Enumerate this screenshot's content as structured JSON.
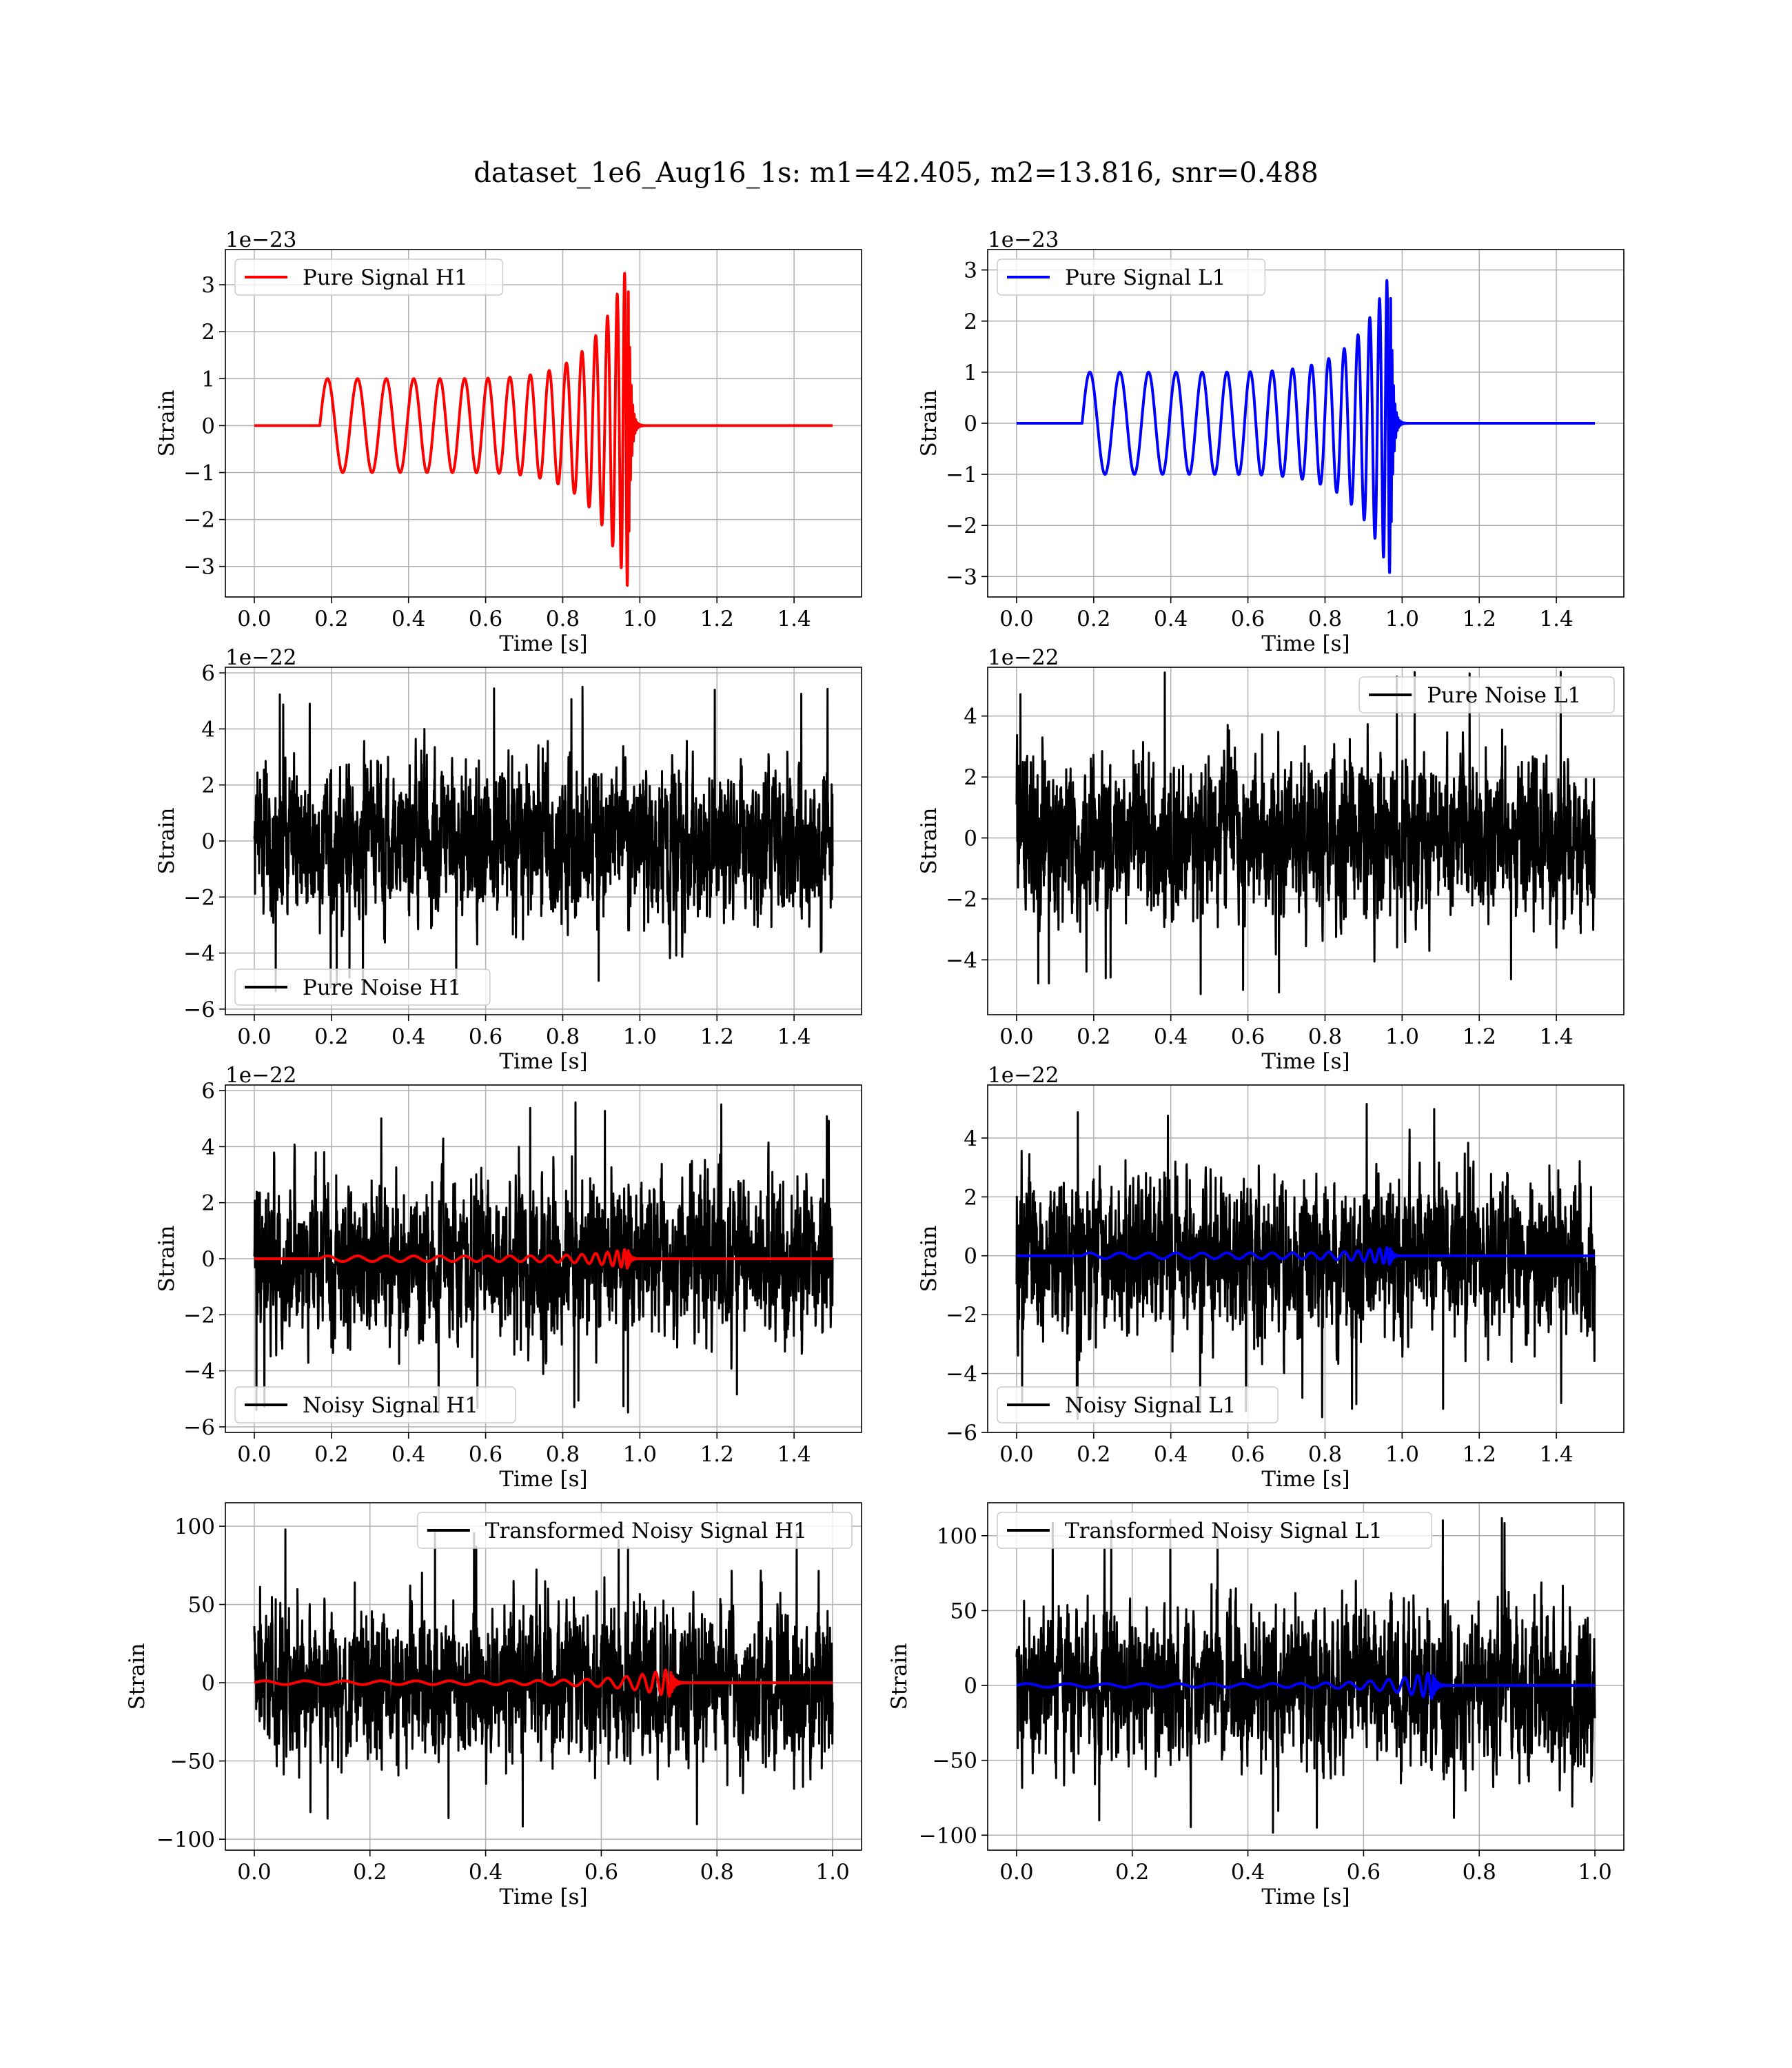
{
  "title": "dataset_1e6_Aug16_1s: m1=42.405, m2=13.816, snr=0.488",
  "colors": {
    "h1_signal": "#ff0000",
    "l1_signal": "#0000ff",
    "noise": "#000000",
    "grid": "#b0b0b0"
  },
  "chart_data": [
    {
      "id": "pure-signal-h1",
      "type": "line",
      "kind": "chirp",
      "detector": "H1",
      "xlabel": "Time [s]",
      "ylabel": "Strain",
      "offset_text": "1e−23",
      "xlim": [
        -0.075,
        1.575
      ],
      "ylim": [
        -3.65,
        3.75
      ],
      "xticks": [
        0.0,
        0.2,
        0.4,
        0.6,
        0.8,
        1.0,
        1.2,
        1.4
      ],
      "xticklabels": [
        "0.0",
        "0.2",
        "0.4",
        "0.6",
        "0.8",
        "1.0",
        "1.2",
        "1.4"
      ],
      "yticks": [
        -3,
        -2,
        -1,
        0,
        1,
        2,
        3
      ],
      "yticklabels": [
        "−3",
        "−2",
        "−1",
        "0",
        "1",
        "2",
        "3"
      ],
      "legend": "top-left",
      "series": [
        {
          "name": "Pure Signal H1",
          "color": "#ff0000",
          "t_start": 0.17,
          "t_merger": 0.97,
          "t_end": 1.5,
          "amp_start": 1.0,
          "amp_peak": 3.5,
          "amp_trough": -3.4
        }
      ]
    },
    {
      "id": "pure-signal-l1",
      "type": "line",
      "kind": "chirp",
      "detector": "L1",
      "xlabel": "Time [s]",
      "ylabel": "Strain",
      "offset_text": "1e−23",
      "xlim": [
        -0.075,
        1.575
      ],
      "ylim": [
        -3.4,
        3.4
      ],
      "xticks": [
        0.0,
        0.2,
        0.4,
        0.6,
        0.8,
        1.0,
        1.2,
        1.4
      ],
      "xticklabels": [
        "0.0",
        "0.2",
        "0.4",
        "0.6",
        "0.8",
        "1.0",
        "1.2",
        "1.4"
      ],
      "yticks": [
        -3,
        -2,
        -1,
        0,
        1,
        2,
        3
      ],
      "yticklabels": [
        "−3",
        "−2",
        "−1",
        "0",
        "1",
        "2",
        "3"
      ],
      "legend": "top-left",
      "series": [
        {
          "name": "Pure Signal L1",
          "color": "#0000ff",
          "t_start": 0.17,
          "t_merger": 0.97,
          "t_end": 1.5,
          "amp_start": 1.0,
          "amp_peak": 3.0,
          "amp_trough": -3.1
        }
      ]
    },
    {
      "id": "pure-noise-h1",
      "type": "line",
      "kind": "noise",
      "detector": "H1",
      "xlabel": "Time [s]",
      "ylabel": "Strain",
      "offset_text": "1e−22",
      "xlim": [
        -0.075,
        1.575
      ],
      "ylim": [
        -6.2,
        6.2
      ],
      "xticks": [
        0.0,
        0.2,
        0.4,
        0.6,
        0.8,
        1.0,
        1.2,
        1.4
      ],
      "xticklabels": [
        "0.0",
        "0.2",
        "0.4",
        "0.6",
        "0.8",
        "1.0",
        "1.2",
        "1.4"
      ],
      "yticks": [
        -6,
        -4,
        -2,
        0,
        2,
        4,
        6
      ],
      "yticklabels": [
        "−6",
        "−4",
        "−2",
        "0",
        "2",
        "4",
        "6"
      ],
      "legend": "bottom-left",
      "series": [
        {
          "name": "Pure Noise H1",
          "color": "#000000",
          "t_start": 0.0,
          "t_end": 1.5,
          "min": -5.6,
          "max": 5.7
        }
      ]
    },
    {
      "id": "pure-noise-l1",
      "type": "line",
      "kind": "noise",
      "detector": "L1",
      "xlabel": "Time [s]",
      "ylabel": "Strain",
      "offset_text": "1e−22",
      "xlim": [
        -0.075,
        1.575
      ],
      "ylim": [
        -5.8,
        5.6
      ],
      "xticks": [
        0.0,
        0.2,
        0.4,
        0.6,
        0.8,
        1.0,
        1.2,
        1.4
      ],
      "xticklabels": [
        "0.0",
        "0.2",
        "0.4",
        "0.6",
        "0.8",
        "1.0",
        "1.2",
        "1.4"
      ],
      "yticks": [
        -4,
        -2,
        0,
        2,
        4
      ],
      "yticklabels": [
        "−4",
        "−2",
        "0",
        "2",
        "4"
      ],
      "legend": "top-right",
      "series": [
        {
          "name": "Pure Noise L1",
          "color": "#000000",
          "t_start": 0.0,
          "t_end": 1.5,
          "min": -5.2,
          "max": 5.5
        }
      ]
    },
    {
      "id": "noisy-signal-h1",
      "type": "line",
      "kind": "noise_with_signal",
      "detector": "H1",
      "xlabel": "Time [s]",
      "ylabel": "Strain",
      "offset_text": "1e−22",
      "xlim": [
        -0.075,
        1.575
      ],
      "ylim": [
        -6.2,
        6.2
      ],
      "xticks": [
        0.0,
        0.2,
        0.4,
        0.6,
        0.8,
        1.0,
        1.2,
        1.4
      ],
      "xticklabels": [
        "0.0",
        "0.2",
        "0.4",
        "0.6",
        "0.8",
        "1.0",
        "1.2",
        "1.4"
      ],
      "yticks": [
        -6,
        -4,
        -2,
        0,
        2,
        4,
        6
      ],
      "yticklabels": [
        "−6",
        "−4",
        "−2",
        "0",
        "2",
        "4",
        "6"
      ],
      "legend": "bottom-left",
      "series": [
        {
          "name": "Noisy Signal H1",
          "color": "#000000",
          "t_start": 0.0,
          "t_end": 1.5,
          "min": -5.6,
          "max": 5.7
        },
        {
          "color": "#ff0000",
          "t_start": 0.17,
          "t_merger": 0.97,
          "t_end": 1.5,
          "amp_start": 0.1,
          "amp_peak": 0.35,
          "amp_trough": -0.34
        }
      ]
    },
    {
      "id": "noisy-signal-l1",
      "type": "line",
      "kind": "noise_with_signal",
      "detector": "L1",
      "xlabel": "Time [s]",
      "ylabel": "Strain",
      "offset_text": "1e−22",
      "xlim": [
        -0.075,
        1.575
      ],
      "ylim": [
        -6.0,
        5.8
      ],
      "xticks": [
        0.0,
        0.2,
        0.4,
        0.6,
        0.8,
        1.0,
        1.2,
        1.4
      ],
      "xticklabels": [
        "0.0",
        "0.2",
        "0.4",
        "0.6",
        "0.8",
        "1.0",
        "1.2",
        "1.4"
      ],
      "yticks": [
        -6,
        -4,
        -2,
        0,
        2,
        4
      ],
      "yticklabels": [
        "−6",
        "−4",
        "−2",
        "0",
        "2",
        "4"
      ],
      "legend": "bottom-left",
      "series": [
        {
          "name": "Noisy Signal L1",
          "color": "#000000",
          "t_start": 0.0,
          "t_end": 1.5,
          "min": -5.6,
          "max": 5.3
        },
        {
          "color": "#0000ff",
          "t_start": 0.17,
          "t_merger": 0.97,
          "t_end": 1.5,
          "amp_start": 0.1,
          "amp_peak": 0.3,
          "amp_trough": -0.31
        }
      ]
    },
    {
      "id": "transformed-noisy-signal-h1",
      "type": "line",
      "kind": "noise_with_signal",
      "detector": "H1",
      "xlabel": "Time [s]",
      "ylabel": "Strain",
      "offset_text": "",
      "xlim": [
        -0.05,
        1.05
      ],
      "ylim": [
        -107,
        115
      ],
      "xticks": [
        0.0,
        0.2,
        0.4,
        0.6,
        0.8,
        1.0
      ],
      "xticklabels": [
        "0.0",
        "0.2",
        "0.4",
        "0.6",
        "0.8",
        "1.0"
      ],
      "yticks": [
        -100,
        -50,
        0,
        50,
        100
      ],
      "yticklabels": [
        "−100",
        "−50",
        "0",
        "50",
        "100"
      ],
      "legend": "top-right",
      "series": [
        {
          "name": "Transformed Noisy Signal H1",
          "color": "#000000",
          "t_start": 0.0,
          "t_end": 1.0,
          "min": -97,
          "max": 100
        },
        {
          "color": "#ff0000",
          "t_start": 0.0,
          "t_merger": 0.72,
          "t_end": 1.0,
          "amp_start": 1.2,
          "amp_peak": 9,
          "amp_trough": -9
        }
      ]
    },
    {
      "id": "transformed-noisy-signal-l1",
      "type": "line",
      "kind": "noise_with_signal",
      "detector": "L1",
      "xlabel": "Time [s]",
      "ylabel": "Strain",
      "offset_text": "",
      "xlim": [
        -0.05,
        1.05
      ],
      "ylim": [
        -110,
        122
      ],
      "xticks": [
        0.0,
        0.2,
        0.4,
        0.6,
        0.8,
        1.0
      ],
      "xticklabels": [
        "0.0",
        "0.2",
        "0.4",
        "0.6",
        "0.8",
        "1.0"
      ],
      "yticks": [
        -100,
        -50,
        0,
        50,
        100
      ],
      "yticklabels": [
        "−100",
        "−50",
        "0",
        "50",
        "100"
      ],
      "legend": "top-left",
      "series": [
        {
          "name": "Transformed Noisy Signal L1",
          "color": "#000000",
          "t_start": 0.0,
          "t_end": 1.0,
          "min": -100,
          "max": 115
        },
        {
          "color": "#0000ff",
          "t_start": 0.0,
          "t_merger": 0.72,
          "t_end": 1.0,
          "amp_start": 1.2,
          "amp_peak": 9,
          "amp_trough": -9
        }
      ]
    }
  ]
}
